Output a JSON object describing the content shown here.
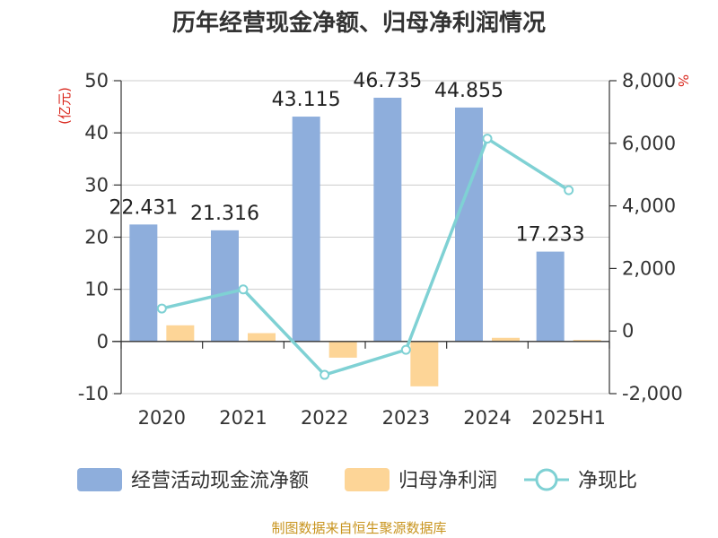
{
  "chart_data": {
    "type": "bar",
    "title": "历年经营现金净额、归母净利润情况",
    "categories": [
      "2020",
      "2021",
      "2022",
      "2023",
      "2024",
      "2025H1"
    ],
    "left_unit": "(亿元)",
    "right_unit": "%",
    "ylim_left": [
      -10,
      50
    ],
    "yticks_left": [
      50,
      40,
      30,
      20,
      10,
      0,
      -10
    ],
    "ylim_right": [
      -2000,
      8000
    ],
    "yticks_right": [
      "8,000",
      "6,000",
      "4,000",
      "2,000",
      "0",
      "-2,000"
    ],
    "yticks_right_values": [
      8000,
      6000,
      4000,
      2000,
      0,
      -2000
    ],
    "series": [
      {
        "name": "经营活动现金流净额",
        "kind": "bar",
        "axis": "left",
        "values": [
          22.431,
          21.316,
          43.115,
          46.735,
          44.855,
          17.233
        ],
        "labels": [
          "22.431",
          "21.316",
          "43.115",
          "46.735",
          "44.855",
          "17.233"
        ]
      },
      {
        "name": "归母净利润",
        "kind": "bar",
        "axis": "left",
        "values": [
          3.1,
          1.6,
          -3.1,
          -8.6,
          0.7,
          0.3
        ]
      },
      {
        "name": "净现比",
        "kind": "line",
        "axis": "right",
        "values": [
          720,
          1330,
          -1400,
          -600,
          6150,
          4500
        ]
      }
    ],
    "colors": {
      "cash": "#8eaedc",
      "profit": "#fdd597",
      "ratio": "#7fd1d4",
      "grid": "#cccccc"
    }
  },
  "source": "制图数据来自恒生聚源数据库"
}
